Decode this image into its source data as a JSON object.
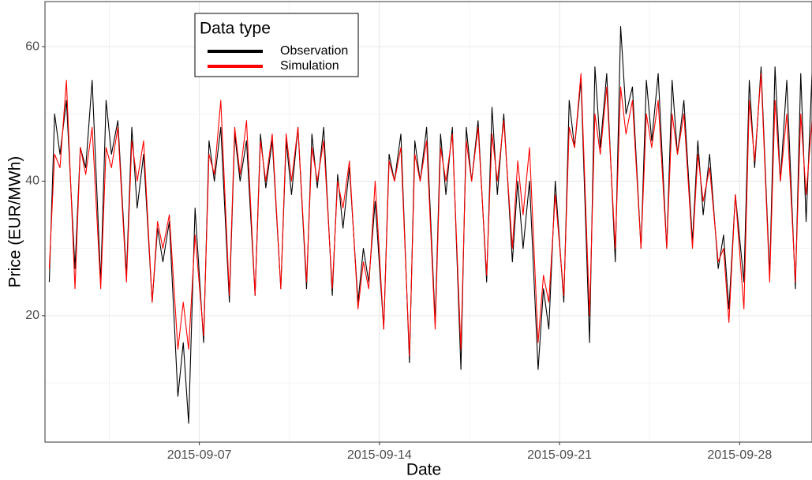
{
  "chart_data": {
    "type": "line",
    "x_label": "Date",
    "y_label": "Price (EUR/MWh)",
    "legend_title": "Data type",
    "legend": "top-left",
    "grid": true,
    "x": [
      "2015-09-01 04:00",
      "2015-09-01 09:00",
      "2015-09-01 14:00",
      "2015-09-01 20:00",
      "2015-09-02 04:00",
      "2015-09-02 09:00",
      "2015-09-02 14:00",
      "2015-09-02 20:00",
      "2015-09-03 04:00",
      "2015-09-03 09:00",
      "2015-09-03 14:00",
      "2015-09-03 20:00",
      "2015-09-04 04:00",
      "2015-09-04 09:00",
      "2015-09-04 14:00",
      "2015-09-04 20:00",
      "2015-09-05 04:00",
      "2015-09-05 09:00",
      "2015-09-05 14:00",
      "2015-09-05 20:00",
      "2015-09-06 04:00",
      "2015-09-06 09:00",
      "2015-09-06 14:00",
      "2015-09-06 20:00",
      "2015-09-07 04:00",
      "2015-09-07 09:00",
      "2015-09-07 14:00",
      "2015-09-07 20:00",
      "2015-09-08 04:00",
      "2015-09-08 09:00",
      "2015-09-08 14:00",
      "2015-09-08 20:00",
      "2015-09-09 04:00",
      "2015-09-09 09:00",
      "2015-09-09 14:00",
      "2015-09-09 20:00",
      "2015-09-10 04:00",
      "2015-09-10 09:00",
      "2015-09-10 14:00",
      "2015-09-10 20:00",
      "2015-09-11 04:00",
      "2015-09-11 09:00",
      "2015-09-11 14:00",
      "2015-09-11 20:00",
      "2015-09-12 04:00",
      "2015-09-12 09:00",
      "2015-09-12 14:00",
      "2015-09-12 20:00",
      "2015-09-13 04:00",
      "2015-09-13 09:00",
      "2015-09-13 14:00",
      "2015-09-13 20:00",
      "2015-09-14 04:00",
      "2015-09-14 09:00",
      "2015-09-14 14:00",
      "2015-09-14 20:00",
      "2015-09-15 04:00",
      "2015-09-15 09:00",
      "2015-09-15 14:00",
      "2015-09-15 20:00",
      "2015-09-16 04:00",
      "2015-09-16 09:00",
      "2015-09-16 14:00",
      "2015-09-16 20:00",
      "2015-09-17 04:00",
      "2015-09-17 09:00",
      "2015-09-17 14:00",
      "2015-09-17 20:00",
      "2015-09-18 04:00",
      "2015-09-18 09:00",
      "2015-09-18 14:00",
      "2015-09-18 20:00",
      "2015-09-19 04:00",
      "2015-09-19 09:00",
      "2015-09-19 14:00",
      "2015-09-19 20:00",
      "2015-09-20 04:00",
      "2015-09-20 09:00",
      "2015-09-20 14:00",
      "2015-09-20 20:00",
      "2015-09-21 04:00",
      "2015-09-21 09:00",
      "2015-09-21 14:00",
      "2015-09-21 20:00",
      "2015-09-22 04:00",
      "2015-09-22 09:00",
      "2015-09-22 14:00",
      "2015-09-22 20:00",
      "2015-09-23 04:00",
      "2015-09-23 09:00",
      "2015-09-23 14:00",
      "2015-09-23 20:00",
      "2015-09-24 04:00",
      "2015-09-24 09:00",
      "2015-09-24 14:00",
      "2015-09-24 20:00",
      "2015-09-25 04:00",
      "2015-09-25 09:00",
      "2015-09-25 14:00",
      "2015-09-25 20:00",
      "2015-09-26 04:00",
      "2015-09-26 09:00",
      "2015-09-26 14:00",
      "2015-09-26 20:00",
      "2015-09-27 04:00",
      "2015-09-27 09:00",
      "2015-09-27 14:00",
      "2015-09-27 20:00",
      "2015-09-28 04:00",
      "2015-09-28 09:00",
      "2015-09-28 14:00",
      "2015-09-28 20:00",
      "2015-09-29 04:00",
      "2015-09-29 09:00",
      "2015-09-29 14:00",
      "2015-09-29 20:00",
      "2015-09-30 04:00",
      "2015-09-30 09:00",
      "2015-09-30 14:00",
      "2015-09-30 20:00"
    ],
    "series": [
      {
        "name": "Observation",
        "color": "#000000",
        "values": [
          25,
          50,
          44,
          52,
          27,
          45,
          42,
          55,
          25,
          52,
          44,
          49,
          26,
          48,
          36,
          44,
          22,
          33,
          28,
          34,
          8,
          16,
          4,
          36,
          16,
          46,
          40,
          48,
          22,
          47,
          40,
          46,
          23,
          47,
          39,
          46,
          24,
          46,
          38,
          48,
          24,
          47,
          39,
          48,
          23,
          41,
          33,
          42,
          22,
          30,
          25,
          37,
          18,
          44,
          40,
          47,
          13,
          46,
          40,
          48,
          19,
          47,
          38,
          48,
          12,
          48,
          40,
          49,
          25,
          51,
          38,
          50,
          28,
          40,
          30,
          40,
          12,
          24,
          18,
          40,
          22,
          52,
          45,
          55,
          16,
          57,
          45,
          56,
          28,
          63,
          50,
          54,
          30,
          55,
          46,
          56,
          30,
          55,
          44,
          52,
          31,
          46,
          35,
          44,
          27,
          32,
          21,
          38,
          25,
          55,
          42,
          57,
          26,
          57,
          40,
          55,
          24,
          56,
          34,
          58
        ]
      },
      {
        "name": "Simulation",
        "color": "#ff0000",
        "values": [
          27,
          44,
          42,
          55,
          24,
          45,
          41,
          48,
          24,
          45,
          42,
          48,
          25,
          46,
          40,
          46,
          22,
          34,
          30,
          35,
          15,
          22,
          15,
          32,
          17,
          44,
          41,
          52,
          23,
          48,
          41,
          49,
          23,
          46,
          40,
          47,
          24,
          47,
          40,
          48,
          25,
          45,
          40,
          46,
          24,
          40,
          36,
          43,
          21,
          28,
          24,
          40,
          18,
          43,
          40,
          45,
          14,
          44,
          40,
          46,
          18,
          45,
          40,
          47,
          15,
          46,
          40,
          48,
          26,
          47,
          40,
          49,
          30,
          43,
          35,
          45,
          16,
          26,
          22,
          38,
          23,
          48,
          45,
          56,
          20,
          50,
          44,
          54,
          30,
          54,
          47,
          52,
          30,
          50,
          45,
          52,
          30,
          50,
          44,
          50,
          30,
          44,
          37,
          42,
          28,
          30,
          19,
          38,
          21,
          52,
          43,
          56,
          25,
          52,
          40,
          50,
          25,
          50,
          38,
          50
        ]
      }
    ],
    "xlim": [
      "2015-09-01 00:00",
      "2015-09-30 19:30"
    ],
    "xticks": [
      "2015-09-07",
      "2015-09-14",
      "2015-09-21",
      "2015-09-28"
    ],
    "ylim": [
      1.2,
      66.7
    ],
    "yticks": [
      20,
      40,
      60
    ]
  }
}
